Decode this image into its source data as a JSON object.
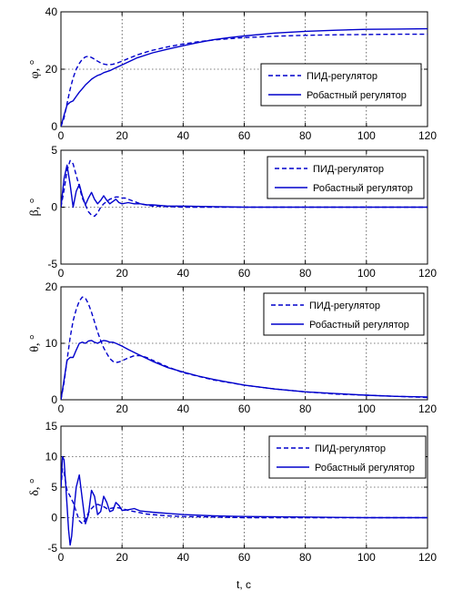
{
  "figure": {
    "xlabel": "t, c",
    "line_color": "#0000cc"
  },
  "chart_data": [
    {
      "type": "line",
      "ylabel": "φ, °",
      "xlim": [
        0,
        120
      ],
      "ylim": [
        0,
        40
      ],
      "xticks": [
        0,
        20,
        40,
        60,
        80,
        100,
        120
      ],
      "yticks": [
        0,
        20,
        40
      ],
      "grid": true,
      "legend_position": "right",
      "series": [
        {
          "name": "ПИД-регулятор",
          "style": "dashed",
          "x": [
            0,
            1,
            2,
            3,
            4,
            5,
            6,
            7,
            8,
            9,
            10,
            11,
            12,
            13,
            14,
            15,
            16,
            17,
            18,
            20,
            22,
            25,
            28,
            30,
            35,
            40,
            45,
            50,
            55,
            60,
            70,
            80,
            90,
            100,
            110,
            120
          ],
          "y": [
            0,
            3,
            8,
            13,
            17,
            20,
            22,
            23.5,
            24.3,
            24.5,
            24.1,
            23.5,
            22.8,
            22.2,
            21.8,
            21.6,
            21.6,
            21.7,
            22,
            22.8,
            23.7,
            25,
            26,
            26.6,
            27.8,
            28.8,
            29.6,
            30.2,
            30.6,
            31,
            31.5,
            31.8,
            32,
            32.1,
            32.2,
            32.2
          ]
        },
        {
          "name": "Робастный регулятор",
          "style": "solid",
          "x": [
            0,
            1,
            2,
            3,
            4,
            5,
            6,
            7,
            8,
            9,
            10,
            11,
            12,
            13,
            14,
            16,
            18,
            20,
            22,
            25,
            30,
            35,
            40,
            45,
            50,
            55,
            60,
            70,
            80,
            90,
            100,
            110,
            120
          ],
          "y": [
            0,
            4,
            7.5,
            8.5,
            9,
            10.5,
            12,
            13.2,
            14.5,
            15.5,
            16.5,
            17.2,
            17.8,
            18.2,
            18.8,
            19.5,
            20.5,
            21.5,
            22.5,
            24,
            25.7,
            27,
            28.2,
            29.3,
            30.3,
            31,
            31.6,
            32.6,
            33.2,
            33.6,
            33.9,
            34,
            34.1
          ]
        }
      ]
    },
    {
      "type": "line",
      "ylabel": "β, °",
      "xlim": [
        0,
        120
      ],
      "ylim": [
        -5,
        5
      ],
      "xticks": [
        0,
        20,
        40,
        60,
        80,
        100,
        120
      ],
      "yticks": [
        -5,
        0,
        5
      ],
      "grid": true,
      "legend_position": "right",
      "series": [
        {
          "name": "ПИД-регулятор",
          "style": "dashed",
          "x": [
            0,
            1,
            2,
            3,
            4,
            5,
            6,
            7,
            8,
            9,
            10,
            11,
            12,
            13,
            14,
            15,
            16,
            17,
            18,
            19,
            20,
            21,
            22,
            23,
            24,
            26,
            28,
            30,
            35,
            40,
            50,
            60,
            70,
            80,
            100,
            120
          ],
          "y": [
            0,
            1.5,
            3.2,
            4.1,
            3.8,
            2.8,
            1.8,
            0.8,
            0.2,
            -0.4,
            -0.7,
            -0.8,
            -0.5,
            0,
            0.3,
            0.5,
            0.7,
            0.8,
            0.9,
            0.9,
            0.8,
            0.8,
            0.7,
            0.6,
            0.5,
            0.3,
            0.2,
            0.1,
            0.05,
            0,
            0,
            0,
            0,
            0,
            0,
            0
          ]
        },
        {
          "name": "Робастный регулятор",
          "style": "solid",
          "x": [
            0,
            1,
            2,
            3,
            4,
            5,
            6,
            7,
            8,
            9,
            10,
            11,
            12,
            13,
            14,
            15,
            16,
            17,
            18,
            19,
            20,
            22,
            24,
            26,
            28,
            30,
            35,
            40,
            50,
            60,
            70,
            80,
            100,
            120
          ],
          "y": [
            0,
            2.5,
            3.7,
            2,
            0,
            1.4,
            2,
            1,
            0.2,
            0.8,
            1.3,
            0.7,
            0.3,
            0.6,
            1,
            0.6,
            0.3,
            0.5,
            0.7,
            0.4,
            0.3,
            0.4,
            0.3,
            0.3,
            0.2,
            0.2,
            0.1,
            0.1,
            0.05,
            0,
            0,
            0,
            0,
            0
          ]
        }
      ]
    },
    {
      "type": "line",
      "ylabel": "θ, °",
      "xlim": [
        0,
        120
      ],
      "ylim": [
        0,
        20
      ],
      "xticks": [
        0,
        20,
        40,
        60,
        80,
        100,
        120
      ],
      "yticks": [
        0,
        10,
        20
      ],
      "grid": true,
      "legend_position": "right",
      "series": [
        {
          "name": "ПИД-регулятор",
          "style": "dashed",
          "x": [
            0,
            1,
            2,
            3,
            4,
            5,
            6,
            7,
            8,
            9,
            10,
            11,
            12,
            13,
            14,
            15,
            16,
            17,
            18,
            19,
            20,
            22,
            24,
            26,
            28,
            30,
            35,
            40,
            50,
            60,
            70,
            80,
            90,
            100,
            110,
            120
          ],
          "y": [
            0,
            3,
            7,
            11,
            14,
            16,
            17.5,
            18.2,
            18,
            17,
            15.5,
            13.8,
            12,
            10.5,
            9.2,
            8.2,
            7.3,
            6.8,
            6.6,
            6.7,
            6.9,
            7.4,
            7.8,
            7.8,
            7.5,
            7,
            5.8,
            4.8,
            3.5,
            2.6,
            1.9,
            1.4,
            1,
            0.8,
            0.6,
            0.4
          ]
        },
        {
          "name": "Робастный регулятор",
          "style": "solid",
          "x": [
            0,
            1,
            2,
            3,
            4,
            5,
            6,
            7,
            8,
            9,
            10,
            11,
            12,
            13,
            14,
            15,
            16,
            17,
            18,
            20,
            22,
            25,
            30,
            35,
            40,
            45,
            50,
            60,
            70,
            80,
            90,
            100,
            110,
            120
          ],
          "y": [
            0,
            3.5,
            7,
            7.5,
            7.5,
            8.8,
            10,
            10.2,
            10,
            10.4,
            10.5,
            10.2,
            10,
            10.3,
            10.5,
            10.4,
            10.2,
            10.2,
            10,
            9.5,
            8.9,
            8.1,
            6.8,
            5.7,
            4.9,
            4.2,
            3.6,
            2.6,
            1.9,
            1.4,
            1.1,
            0.8,
            0.6,
            0.5
          ]
        }
      ]
    },
    {
      "type": "line",
      "ylabel": "δ, °",
      "xlim": [
        0,
        120
      ],
      "ylim": [
        -5,
        15
      ],
      "xticks": [
        0,
        20,
        40,
        60,
        80,
        100,
        120
      ],
      "yticks": [
        -5,
        0,
        5,
        10,
        15
      ],
      "grid": true,
      "legend_position": "top-right",
      "series": [
        {
          "name": "ПИД-регулятор",
          "style": "dashed",
          "x": [
            0,
            0.5,
            1,
            1.5,
            2,
            3,
            4,
            5,
            6,
            7,
            8,
            9,
            10,
            11,
            12,
            13,
            14,
            15,
            16,
            18,
            20,
            22,
            24,
            26,
            28,
            30,
            35,
            40,
            50,
            60,
            80,
            100,
            120
          ],
          "y": [
            5,
            8,
            7.5,
            6,
            4.5,
            3.5,
            2.5,
            1,
            -0.5,
            -1,
            -0.3,
            0.8,
            1.5,
            2,
            2.2,
            2,
            1.8,
            1.5,
            1.5,
            1.7,
            1.5,
            1.2,
            1,
            0.8,
            0.6,
            0.5,
            0.3,
            0.2,
            0.1,
            0,
            0,
            0,
            0
          ]
        },
        {
          "name": "Робастный регулятор",
          "style": "solid",
          "x": [
            0,
            0.5,
            1,
            1.5,
            2,
            2.5,
            3,
            3.5,
            4,
            5,
            6,
            7,
            8,
            9,
            10,
            11,
            12,
            13,
            14,
            15,
            16,
            17,
            18,
            19,
            20,
            22,
            24,
            26,
            28,
            30,
            35,
            40,
            50,
            60,
            80,
            100,
            120
          ],
          "y": [
            5,
            10,
            9.5,
            6,
            2,
            -2,
            -4.5,
            -3,
            0,
            5,
            7,
            3,
            -1,
            0.5,
            4.5,
            3.5,
            0.5,
            1,
            3.5,
            2.5,
            1,
            1.2,
            2.5,
            2,
            1.2,
            1.3,
            1.5,
            1.1,
            1,
            0.9,
            0.7,
            0.5,
            0.3,
            0.2,
            0.1,
            0,
            0
          ]
        }
      ]
    }
  ]
}
